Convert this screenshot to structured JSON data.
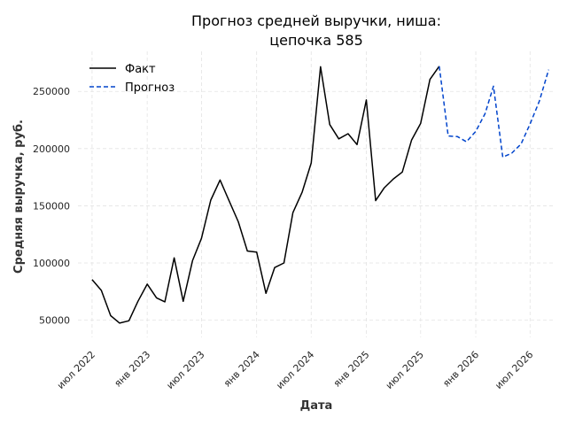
{
  "chart_data": {
    "type": "line",
    "title": [
      "Прогноз средней выручки, ниша:",
      "цепочка 585"
    ],
    "xlabel": "Дата",
    "ylabel": "Средняя выручка, руб.",
    "ylim": [
      35000,
      285000
    ],
    "xlim": [
      "2022-05-15",
      "2026-09-15"
    ],
    "grid": true,
    "legend_position": "top-left",
    "x_ticks": [
      {
        "date": "2022-07-01",
        "label": "июл 2022"
      },
      {
        "date": "2023-01-01",
        "label": "янв 2023"
      },
      {
        "date": "2023-07-01",
        "label": "июл 2023"
      },
      {
        "date": "2024-01-01",
        "label": "янв 2024"
      },
      {
        "date": "2024-07-01",
        "label": "июл 2024"
      },
      {
        "date": "2025-01-01",
        "label": "янв 2025"
      },
      {
        "date": "2025-07-01",
        "label": "июл 2025"
      },
      {
        "date": "2026-01-01",
        "label": "янв 2026"
      },
      {
        "date": "2026-07-01",
        "label": "июл 2026"
      }
    ],
    "y_ticks": [
      50000,
      100000,
      150000,
      200000,
      250000
    ],
    "series": [
      {
        "name": "Факт",
        "color": "#000000",
        "style": "solid",
        "x": [
          "2022-07-01",
          "2022-08-01",
          "2022-09-01",
          "2022-10-01",
          "2022-11-01",
          "2022-12-01",
          "2023-01-01",
          "2023-02-01",
          "2023-03-01",
          "2023-04-01",
          "2023-05-01",
          "2023-06-01",
          "2023-07-01",
          "2023-08-01",
          "2023-09-01",
          "2023-10-01",
          "2023-11-01",
          "2023-12-01",
          "2024-01-01",
          "2024-02-01",
          "2024-03-01",
          "2024-04-01",
          "2024-05-01",
          "2024-06-01",
          "2024-07-01",
          "2024-08-01",
          "2024-09-01",
          "2024-10-01",
          "2024-11-01",
          "2024-12-01",
          "2025-01-01",
          "2025-02-01",
          "2025-03-01",
          "2025-04-01",
          "2025-05-01",
          "2025-06-01",
          "2025-07-01",
          "2025-08-01",
          "2025-09-01"
        ],
        "y": [
          85500,
          76000,
          54000,
          47500,
          49500,
          66500,
          81500,
          69500,
          66000,
          104500,
          66500,
          102000,
          121500,
          155000,
          172500,
          154500,
          136000,
          110500,
          109500,
          73500,
          96000,
          100000,
          144000,
          162000,
          187500,
          271500,
          221000,
          208500,
          213000,
          203500,
          242500,
          154500,
          165500,
          173500,
          179500,
          207500,
          222000,
          260500,
          272000
        ]
      },
      {
        "name": "Прогноз",
        "color": "#0044cc",
        "style": "dashed",
        "x": [
          "2025-09-01",
          "2025-10-01",
          "2025-11-01",
          "2025-12-01",
          "2026-01-01",
          "2026-02-01",
          "2026-03-01",
          "2026-04-01",
          "2026-05-01",
          "2026-06-01",
          "2026-07-01",
          "2026-08-01",
          "2026-09-01"
        ],
        "y": [
          272000,
          211000,
          210500,
          206000,
          215000,
          230500,
          254500,
          192500,
          196000,
          204000,
          221500,
          241500,
          269000
        ]
      }
    ]
  }
}
